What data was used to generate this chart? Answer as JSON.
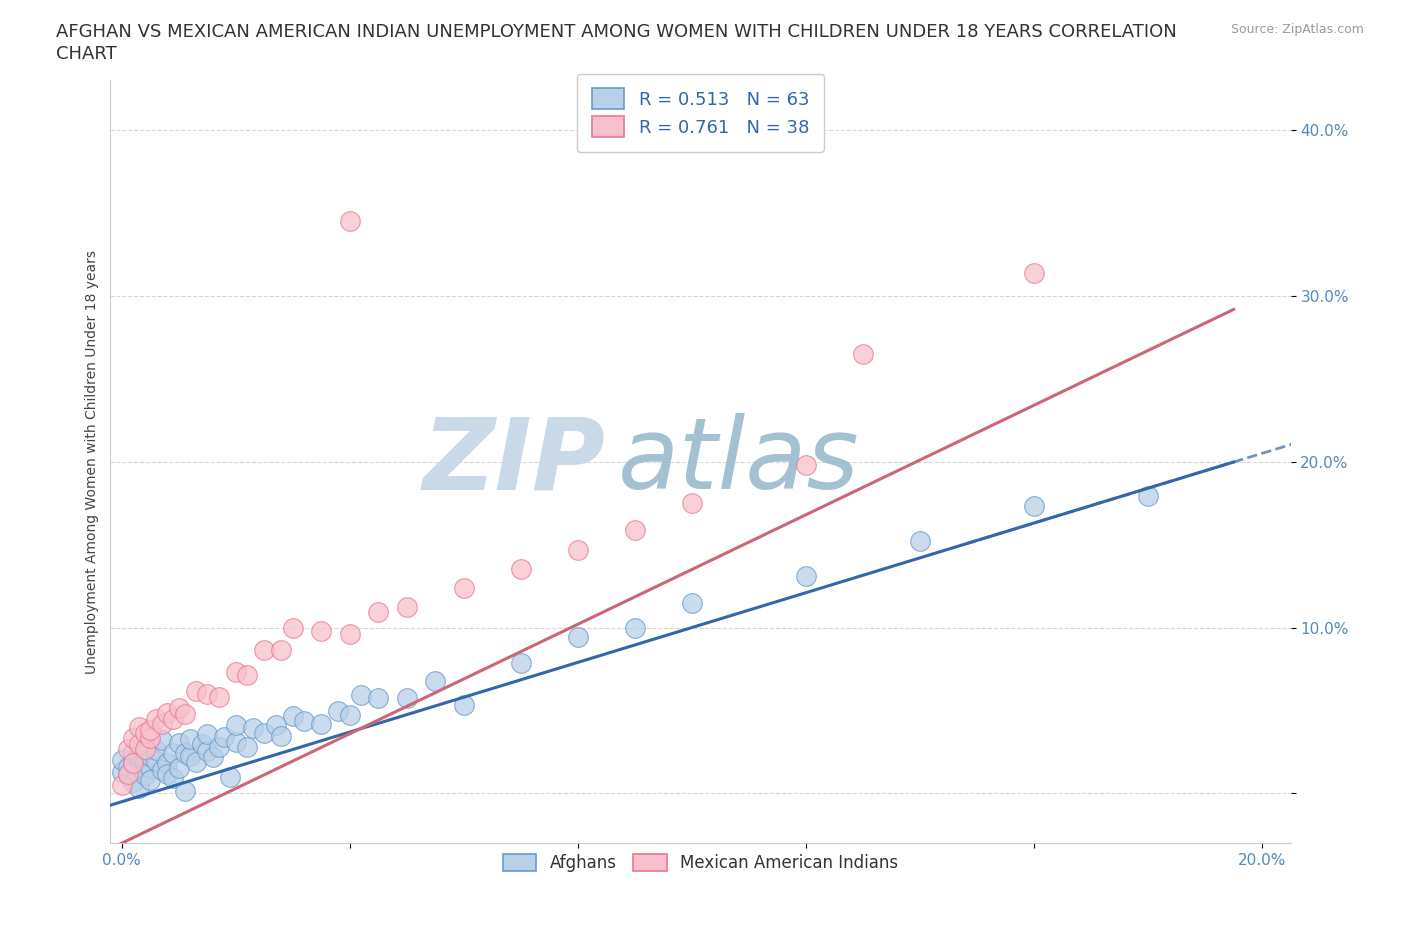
{
  "title_line1": "AFGHAN VS MEXICAN AMERICAN INDIAN UNEMPLOYMENT AMONG WOMEN WITH CHILDREN UNDER 18 YEARS CORRELATION",
  "title_line2": "CHART",
  "source_text": "Source: ZipAtlas.com",
  "ylabel": "Unemployment Among Women with Children Under 18 years",
  "xlim": [
    -0.002,
    0.205
  ],
  "ylim": [
    -0.03,
    0.43
  ],
  "xticks": [
    0.0,
    0.04,
    0.08,
    0.12,
    0.16,
    0.2
  ],
  "xticklabels": [
    "0.0%",
    "",
    "",
    "",
    "",
    "20.0%"
  ],
  "yticks": [
    0.0,
    0.1,
    0.2,
    0.3,
    0.4
  ],
  "yticklabels": [
    "",
    "10.0%",
    "20.0%",
    "30.0%",
    "40.0%"
  ],
  "afghan_face_color": "#b8d0e8",
  "afghan_edge_color": "#6699cc",
  "afghan_line_color": "#3366aa",
  "mexican_face_color": "#f8c0cc",
  "mexican_edge_color": "#e87890",
  "mexican_line_color": "#cc6677",
  "background_color": "#ffffff",
  "watermark_zip_color": "#c5d5e5",
  "watermark_atlas_color": "#99bbcc",
  "legend_R_afghan": "0.513",
  "legend_N_afghan": "63",
  "legend_R_mexican": "0.761",
  "legend_N_mexican": "38",
  "title_fontsize": 13,
  "axis_label_fontsize": 10,
  "tick_fontsize": 11,
  "legend_fontsize": 13,
  "af_line_intercept": -0.005,
  "af_line_slope": 1.05,
  "mx_line_intercept": -0.03,
  "mx_line_slope": 1.65
}
